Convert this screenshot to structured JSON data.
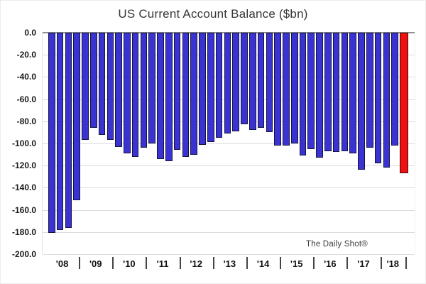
{
  "chart_data": {
    "type": "bar",
    "title": "US Current Account Balance ($bn)",
    "watermark": "The Daily Shot®",
    "x": [
      "2008 Q1",
      "2008 Q2",
      "2008 Q3",
      "2008 Q4",
      "2009 Q1",
      "2009 Q2",
      "2009 Q3",
      "2009 Q4",
      "2010 Q1",
      "2010 Q2",
      "2010 Q3",
      "2010 Q4",
      "2011 Q1",
      "2011 Q2",
      "2011 Q3",
      "2011 Q4",
      "2012 Q1",
      "2012 Q2",
      "2012 Q3",
      "2012 Q4",
      "2013 Q1",
      "2013 Q2",
      "2013 Q3",
      "2013 Q4",
      "2014 Q1",
      "2014 Q2",
      "2014 Q3",
      "2014 Q4",
      "2015 Q1",
      "2015 Q2",
      "2015 Q3",
      "2015 Q4",
      "2016 Q1",
      "2016 Q2",
      "2016 Q3",
      "2016 Q4",
      "2017 Q1",
      "2017 Q2",
      "2017 Q3",
      "2017 Q4",
      "2018 Q1",
      "2018 Q2",
      "2018 Q3"
    ],
    "values": [
      -181,
      -178,
      -176,
      -151,
      -97,
      -86,
      -92,
      -97,
      -103,
      -109,
      -112,
      -104,
      -100,
      -114,
      -116,
      -106,
      -112,
      -110,
      -101,
      -99,
      -95,
      -91,
      -89,
      -83,
      -88,
      -86,
      -90,
      -102,
      -102,
      -100,
      -111,
      -105,
      -113,
      -107,
      -108,
      -107,
      -109,
      -124,
      -104,
      -118,
      -122,
      -102,
      -127
    ],
    "highlight_last": true,
    "bar_color": "#3a33d1",
    "bar_border_color": "#141440",
    "highlight_color": "#ee1111",
    "highlight_border_color": "#3a0a0a",
    "ylim": [
      -200,
      0
    ],
    "ytick_labels": [
      "0.0",
      "-20.0",
      "-40.0",
      "-60.0",
      "-80.0",
      "-100.0",
      "-120.0",
      "-140.0",
      "-160.0",
      "-180.0",
      "-200.0"
    ],
    "year_labels": [
      "'08",
      "'09",
      "'10",
      "'11",
      "'12",
      "'13",
      "'14",
      "'15",
      "'16",
      "'17",
      "'18"
    ],
    "bars_per_year": [
      4,
      4,
      4,
      4,
      4,
      4,
      4,
      4,
      4,
      4,
      3
    ],
    "grid": "horizontal",
    "legend": "none"
  }
}
